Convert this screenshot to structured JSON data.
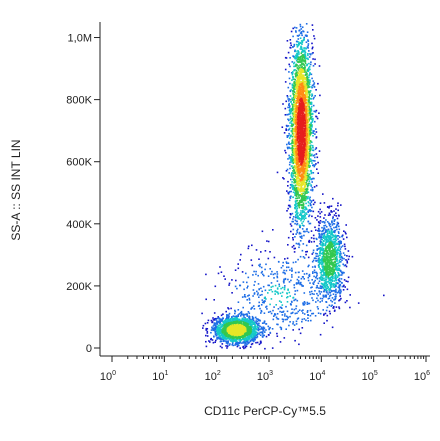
{
  "chart_data": {
    "type": "scatter",
    "style": "flow-cytometry density dot plot (pseudocolor)",
    "xlabel": "CD11c PerCP-Cy™5.5",
    "ylabel": "SS-A :: SS INT LIN",
    "x_scale": "log",
    "xlim": [
      1,
      1000000
    ],
    "x_ticks": [
      {
        "base": "10",
        "exp": "0",
        "value": 1
      },
      {
        "base": "10",
        "exp": "1",
        "value": 10
      },
      {
        "base": "10",
        "exp": "2",
        "value": 100
      },
      {
        "base": "10",
        "exp": "3",
        "value": 1000
      },
      {
        "base": "10",
        "exp": "4",
        "value": 10000
      },
      {
        "base": "10",
        "exp": "5",
        "value": 100000
      },
      {
        "base": "10",
        "exp": "6",
        "value": 1000000
      }
    ],
    "y_scale": "linear",
    "ylim": [
      0,
      1050000
    ],
    "y_ticks": [
      {
        "label": "0",
        "value": 0
      },
      {
        "label": "200K",
        "value": 200000
      },
      {
        "label": "400K",
        "value": 400000
      },
      {
        "label": "600K",
        "value": 600000
      },
      {
        "label": "800K",
        "value": 800000
      },
      {
        "label": "1,0M",
        "value": 1000000
      }
    ],
    "grid": false,
    "density_colors": [
      "#1414c8",
      "#1e6ee6",
      "#14c8c8",
      "#32c850",
      "#e6e628",
      "#ff8c14",
      "#e61e1e"
    ],
    "populations": [
      {
        "x_center": 4000,
        "y_center": 700000,
        "x_spread_decades": 0.11,
        "y_spread": 150000,
        "peak_density": "high",
        "approx_events": 3200
      },
      {
        "x_center": 14000,
        "y_center": 290000,
        "x_spread_decades": 0.14,
        "y_spread": 65000,
        "peak_density": "medium",
        "approx_events": 1100
      },
      {
        "x_center": 230,
        "y_center": 60000,
        "x_spread_decades": 0.22,
        "y_spread": 22000,
        "peak_density": "very high",
        "approx_events": 1700
      },
      {
        "x_center": 1500,
        "y_center": 170000,
        "x_spread_decades": 0.55,
        "y_spread": 70000,
        "peak_density": "low",
        "approx_events": 450
      }
    ]
  }
}
